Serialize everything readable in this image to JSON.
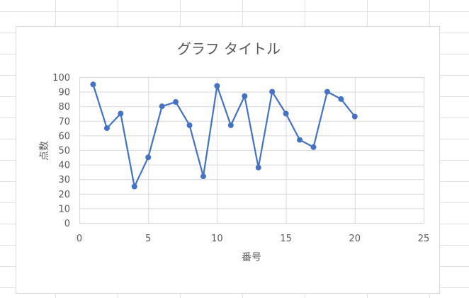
{
  "chart_data": {
    "type": "line",
    "title": "グラフ タイトル",
    "xlabel": "番号",
    "ylabel": "点数",
    "xlim": [
      0,
      25
    ],
    "ylim": [
      0,
      100
    ],
    "xticks": [
      0,
      5,
      10,
      15,
      20,
      25
    ],
    "yticks": [
      0,
      10,
      20,
      30,
      40,
      50,
      60,
      70,
      80,
      90,
      100
    ],
    "grid": true,
    "legend": "none",
    "markers": true,
    "series": [
      {
        "color": "#4472c4",
        "x": [
          1,
          2,
          3,
          4,
          5,
          6,
          7,
          8,
          9,
          10,
          11,
          12,
          13,
          14,
          15,
          16,
          17,
          18,
          19,
          20
        ],
        "y": [
          95,
          65,
          75,
          25,
          45,
          80,
          83,
          67,
          32,
          94,
          67,
          87,
          38,
          90,
          75,
          57,
          52,
          90,
          85,
          73
        ]
      }
    ]
  }
}
